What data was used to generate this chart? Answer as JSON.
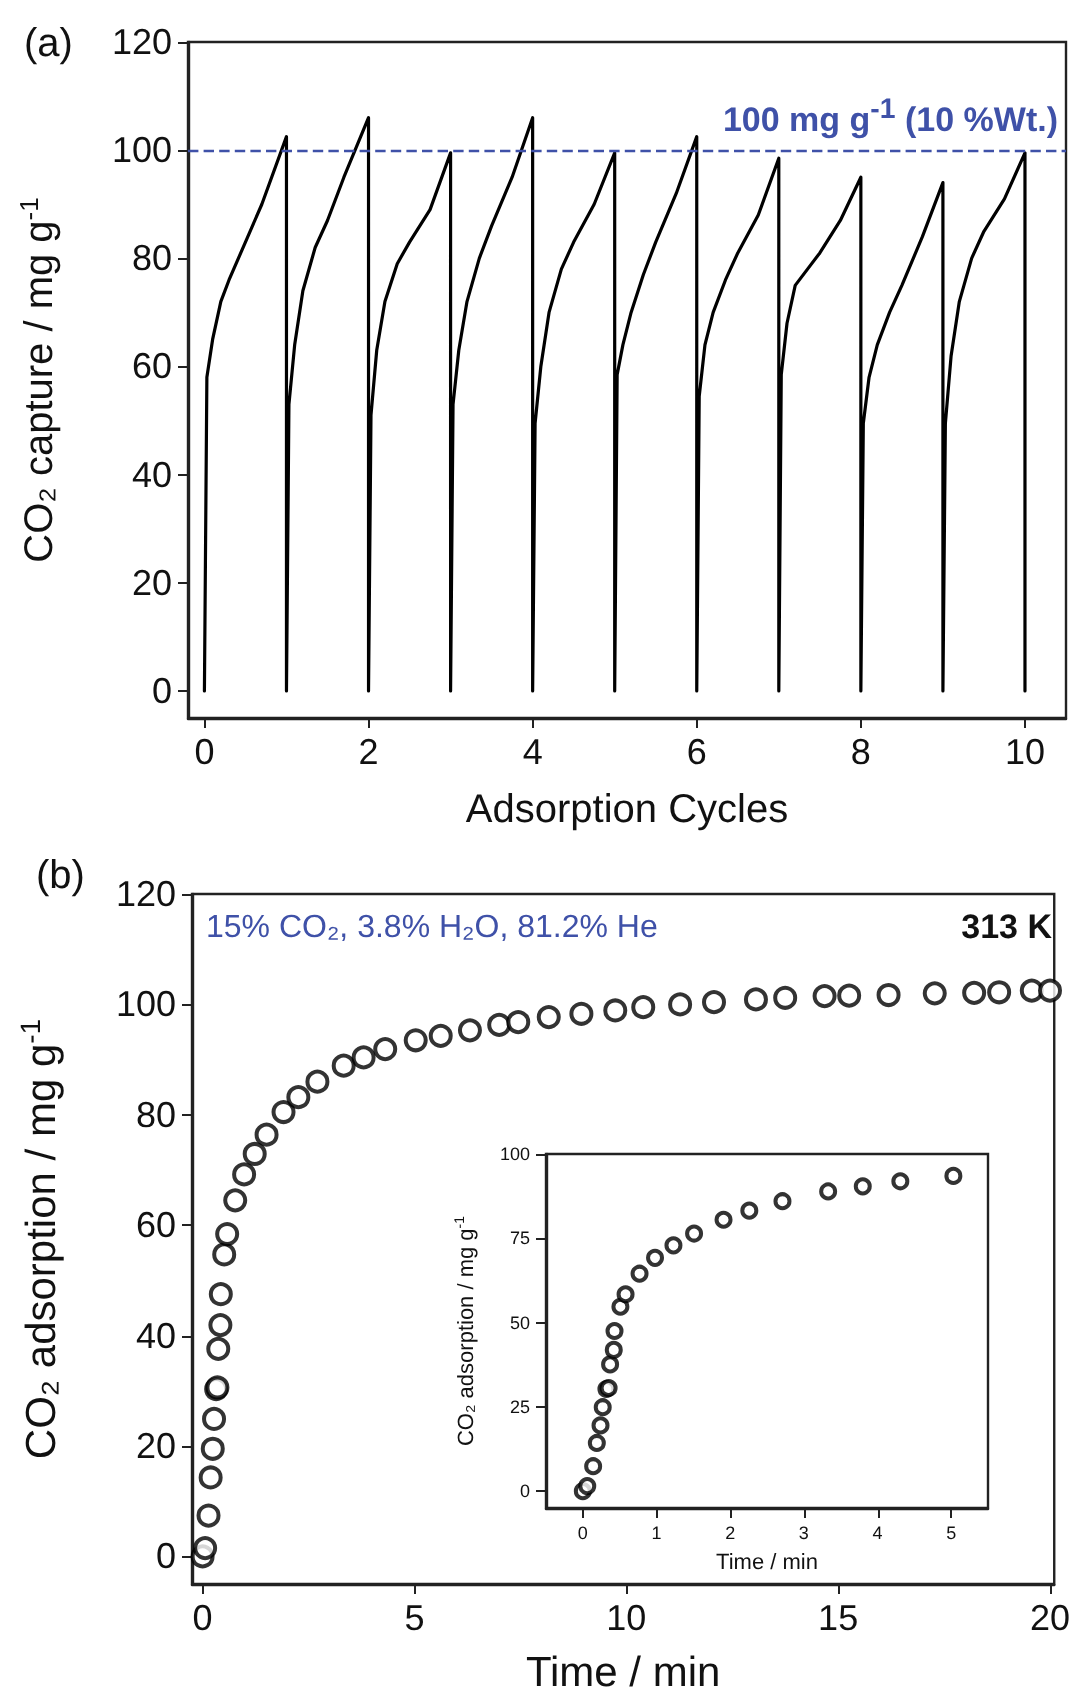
{
  "chart_data": [
    {
      "type": "line",
      "xlabel": "Adsorption Cycles",
      "ylabel": "CO₂ capture / mg g$^{-1}$",
      "annotations": [
        "(a)"
      ],
      "xlim": [
        -0.2,
        10.5
      ],
      "xticks": [
        0,
        2,
        4,
        6,
        8,
        10
      ],
      "ylim": [
        -5,
        120
      ],
      "yticks": [
        0,
        20,
        40,
        60,
        80,
        100,
        120
      ],
      "marker": "none",
      "line_style": "solid",
      "series": [
        {
          "color": "#000000",
          "x": [
            0,
            0.03,
            0.1,
            0.2,
            0.3,
            0.5,
            0.7,
            1.0,
            1.0,
            1.03,
            1.1,
            1.2,
            1.35,
            1.5,
            1.7,
            2.0,
            2.0,
            2.03,
            2.1,
            2.2,
            2.35,
            2.5,
            2.75,
            3.0,
            3.0,
            3.03,
            3.1,
            3.2,
            3.35,
            3.5,
            3.75,
            4.0,
            4.0,
            4.03,
            4.1,
            4.2,
            4.35,
            4.5,
            4.75,
            5.0,
            5.0,
            5.03,
            5.1,
            5.2,
            5.35,
            5.5,
            5.75,
            6.0,
            6.0,
            6.03,
            6.1,
            6.2,
            6.35,
            6.5,
            6.75,
            7.0,
            7.0,
            7.03,
            7.1,
            7.2,
            7.35,
            7.5,
            7.75,
            8.0,
            8.0,
            8.03,
            8.1,
            8.2,
            8.35,
            8.5,
            8.75,
            9.0,
            9.0,
            9.03,
            9.1,
            9.2,
            9.35,
            9.5,
            9.75,
            10.0,
            10.0
          ],
          "values": [
            0,
            58,
            65,
            72,
            76,
            83,
            90,
            102.5,
            0,
            53,
            64,
            74,
            82,
            87,
            95,
            106,
            0,
            51,
            63,
            72,
            79,
            83,
            89,
            99.5,
            0,
            53,
            63,
            72,
            80,
            86,
            95,
            106,
            0,
            49.5,
            60,
            70,
            78,
            83,
            90,
            99.5,
            0,
            58.5,
            64,
            70,
            77,
            83,
            92,
            102.5,
            0,
            54.5,
            64,
            70,
            76,
            81,
            88,
            98.5,
            0,
            58.5,
            68,
            75,
            78,
            81,
            87,
            95,
            0,
            49.5,
            58,
            64,
            70,
            75,
            84,
            94,
            0,
            49.5,
            62,
            72,
            80,
            85,
            91,
            99.5,
            0
          ]
        }
      ],
      "ref_lines": [
        {
          "axis": "y",
          "value": 100,
          "label": "100 mg g$^{-1}$ (10 %Wt.)",
          "color": "#3f51a8",
          "line_style": "dashed"
        }
      ]
    },
    {
      "type": "scatter",
      "xlabel": "Time / min",
      "ylabel": "CO₂ adsorption / mg g$^{-1}$",
      "annotations": [
        "(b)",
        "15% CO₂, 3.8% H₂O, 81.2% He",
        "313 K"
      ],
      "xlim": [
        -0.25,
        20.1
      ],
      "xticks": [
        0,
        5,
        10,
        15,
        20
      ],
      "ylim": [
        -5,
        120
      ],
      "yticks": [
        0,
        20,
        40,
        60,
        80,
        100,
        120
      ],
      "marker": "circle",
      "series": [
        {
          "color": "#000000",
          "x": [
            0,
            0.06,
            0.14,
            0.19,
            0.24,
            0.27,
            0.32,
            0.35,
            0.37,
            0.42,
            0.43,
            0.51,
            0.58,
            0.77,
            0.98,
            1.23,
            1.51,
            1.91,
            2.26,
            2.71,
            3.33,
            3.8,
            4.31,
            5.03,
            5.62,
            6.31,
            7.0,
            7.45,
            8.17,
            8.94,
            9.74,
            10.4,
            11.27,
            12.07,
            13.06,
            13.75,
            14.68,
            15.26,
            16.19,
            17.28,
            18.21,
            18.8,
            19.57,
            20.0
          ],
          "values": [
            0,
            1.5,
            7.4,
            14.3,
            19.5,
            24.9,
            30.3,
            30.6,
            37.6,
            41.9,
            47.5,
            54.7,
            58.4,
            64.5,
            69.2,
            72.9,
            76.4,
            80.5,
            83.2,
            86.0,
            88.9,
            90.4,
            91.9,
            93.5,
            94.3,
            95.3,
            96.3,
            96.8,
            97.7,
            98.3,
            98.9,
            99.5,
            100.0,
            100.4,
            100.9,
            101.2,
            101.5,
            101.6,
            101.7,
            102.0,
            102.1,
            102.2,
            102.5,
            102.5
          ]
        }
      ]
    },
    {
      "type": "scatter",
      "xlabel": "Time / min",
      "ylabel": "CO₂ adsorption / mg g$^{-1}$",
      "xlim": [
        -0.5,
        5.5
      ],
      "xticks": [
        0,
        1,
        2,
        3,
        4,
        5
      ],
      "ylim": [
        -5,
        100
      ],
      "yticks": [
        0,
        25,
        50,
        75,
        100
      ],
      "marker": "circle",
      "series": [
        {
          "color": "#000000",
          "x": [
            0,
            0.06,
            0.14,
            0.19,
            0.24,
            0.27,
            0.32,
            0.35,
            0.37,
            0.42,
            0.43,
            0.51,
            0.58,
            0.77,
            0.98,
            1.23,
            1.51,
            1.91,
            2.26,
            2.71,
            3.33,
            3.8,
            4.31,
            5.03
          ],
          "values": [
            0,
            1.5,
            7.4,
            14.3,
            19.5,
            24.9,
            30.3,
            30.6,
            37.6,
            41.9,
            47.5,
            54.7,
            58.4,
            64.5,
            69.2,
            72.9,
            76.4,
            80.5,
            83.2,
            86.0,
            88.9,
            90.4,
            91.9,
            93.5
          ]
        }
      ]
    }
  ]
}
